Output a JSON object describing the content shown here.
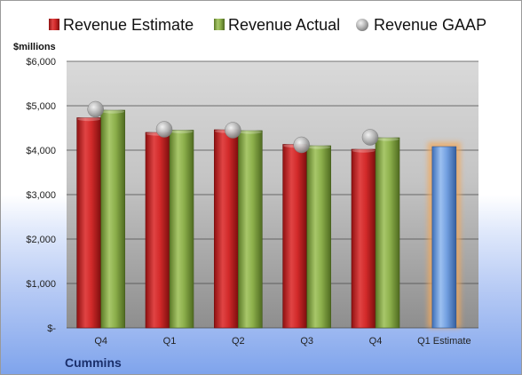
{
  "chart_data": {
    "type": "bar",
    "ylabel": "$millions",
    "footer": "Cummins",
    "categories": [
      "Q4",
      "Q1",
      "Q2",
      "Q3",
      "Q4",
      "Q1 Estimate"
    ],
    "ylim": [
      0,
      6000
    ],
    "yticks": [
      0,
      1000,
      2000,
      3000,
      4000,
      5000,
      6000
    ],
    "ytick_labels": [
      "$-",
      "$1,000",
      "$2,000",
      "$3,000",
      "$4,000",
      "$5,000",
      "$6,000"
    ],
    "grid": true,
    "legend": "top",
    "series": [
      {
        "name": "Revenue Estimate",
        "values": [
          4730,
          4400,
          4460,
          4130,
          4020,
          null
        ],
        "color": "#d42a2a"
      },
      {
        "name": "Revenue Actual",
        "values": [
          4900,
          4450,
          4440,
          4100,
          4280,
          null
        ],
        "color": "#8cb04a"
      },
      {
        "name": "Revenue GAAP",
        "values": [
          4920,
          4470,
          4450,
          4120,
          4290,
          null
        ],
        "color": "#b8b8b8",
        "marker": "sphere"
      }
    ],
    "projection": {
      "category": "Q1 Estimate",
      "value": 4080,
      "color": "#6f9de0",
      "glow": "#f3a85a"
    }
  }
}
